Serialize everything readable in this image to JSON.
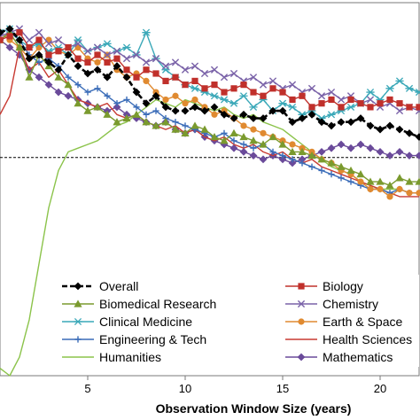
{
  "chart_data": {
    "type": "line",
    "title": "",
    "xlabel": "Observation Window Size (years)",
    "ylabel": "",
    "xlim": [
      0.5,
      22
    ],
    "ylim": [
      0,
      1
    ],
    "x_ticks": [
      5,
      10,
      15,
      20
    ],
    "x_tick_labels": [
      "5",
      "10",
      "15",
      "20"
    ],
    "grid": false,
    "legend_placement": "bottom",
    "reference_line": {
      "y": 0.585,
      "style": "dashed",
      "color": "#000000"
    },
    "x": [
      0.5,
      1,
      1.5,
      2,
      2.5,
      3,
      3.5,
      4,
      4.5,
      5,
      5.5,
      6,
      6.5,
      7,
      7.5,
      8,
      8.5,
      9,
      9.5,
      10,
      10.5,
      11,
      11.5,
      12,
      12.5,
      13,
      13.5,
      14,
      14.5,
      15,
      15.5,
      16,
      16.5,
      17,
      17.5,
      18,
      18.5,
      19,
      19.5,
      20,
      20.5,
      21,
      21.5,
      22
    ],
    "series": [
      {
        "name": "Overall",
        "color": "#000000",
        "marker": "diamond",
        "dashed": true,
        "values": [
          0.92,
          0.93,
          0.9,
          0.85,
          0.86,
          0.84,
          0.82,
          0.86,
          0.83,
          0.81,
          0.82,
          0.8,
          0.83,
          0.8,
          0.76,
          0.73,
          0.75,
          0.72,
          0.71,
          0.71,
          0.72,
          0.71,
          0.72,
          0.7,
          0.69,
          0.7,
          0.69,
          0.69,
          0.71,
          0.71,
          0.68,
          0.69,
          0.7,
          0.68,
          0.67,
          0.68,
          0.68,
          0.69,
          0.67,
          0.66,
          0.67,
          0.66,
          0.65,
          0.64
        ]
      },
      {
        "name": "Biology",
        "color": "#C0302B",
        "marker": "square",
        "dashed": false,
        "values": [
          0.9,
          0.91,
          0.92,
          0.88,
          0.9,
          0.86,
          0.87,
          0.88,
          0.85,
          0.84,
          0.86,
          0.84,
          0.85,
          0.82,
          0.8,
          0.82,
          0.81,
          0.79,
          0.8,
          0.78,
          0.79,
          0.77,
          0.78,
          0.76,
          0.77,
          0.78,
          0.76,
          0.75,
          0.77,
          0.76,
          0.74,
          0.75,
          0.72,
          0.73,
          0.74,
          0.72,
          0.74,
          0.73,
          0.72,
          0.73,
          0.74,
          0.73,
          0.72,
          0.72
        ]
      },
      {
        "name": "Biomedical Research",
        "color": "#7A9A2E",
        "marker": "triangle",
        "dashed": false,
        "values": [
          0.9,
          0.92,
          0.88,
          0.8,
          0.86,
          0.83,
          0.8,
          0.78,
          0.73,
          0.71,
          0.72,
          0.7,
          0.68,
          0.69,
          0.7,
          0.68,
          0.67,
          0.68,
          0.66,
          0.65,
          0.67,
          0.66,
          0.64,
          0.63,
          0.65,
          0.64,
          0.63,
          0.62,
          0.64,
          0.62,
          0.6,
          0.6,
          0.59,
          0.58,
          0.57,
          0.56,
          0.55,
          0.54,
          0.52,
          0.52,
          0.51,
          0.53,
          0.52,
          0.52
        ]
      },
      {
        "name": "Chemistry",
        "color": "#7A62A8",
        "marker": "x",
        "dashed": false,
        "values": [
          0.91,
          0.92,
          0.93,
          0.9,
          0.92,
          0.89,
          0.9,
          0.88,
          0.89,
          0.87,
          0.88,
          0.86,
          0.87,
          0.85,
          0.86,
          0.84,
          0.85,
          0.83,
          0.84,
          0.82,
          0.83,
          0.81,
          0.82,
          0.8,
          0.81,
          0.79,
          0.8,
          0.78,
          0.79,
          0.77,
          0.78,
          0.76,
          0.77,
          0.75,
          0.76,
          0.74,
          0.75,
          0.73,
          0.74,
          0.72,
          0.73,
          0.71,
          0.72,
          0.71
        ]
      },
      {
        "name": "Clinical Medicine",
        "color": "#3AA8B8",
        "marker": "star",
        "dashed": false,
        "values": [
          0.92,
          0.93,
          0.9,
          0.88,
          0.89,
          0.87,
          0.88,
          0.86,
          0.9,
          0.87,
          0.88,
          0.89,
          0.87,
          0.88,
          0.86,
          0.92,
          0.85,
          0.82,
          0.8,
          0.78,
          0.77,
          0.76,
          0.75,
          0.74,
          0.73,
          0.75,
          0.72,
          0.74,
          0.71,
          0.73,
          0.72,
          0.7,
          0.71,
          0.69,
          0.7,
          0.71,
          0.72,
          0.73,
          0.76,
          0.74,
          0.77,
          0.79,
          0.77,
          0.76
        ]
      },
      {
        "name": "Earth & Space",
        "color": "#E08A30",
        "marker": "circle",
        "dashed": false,
        "values": [
          0.92,
          0.9,
          0.88,
          0.85,
          0.88,
          0.9,
          0.87,
          0.86,
          0.88,
          0.85,
          0.84,
          0.86,
          0.82,
          0.8,
          0.81,
          0.79,
          0.76,
          0.74,
          0.75,
          0.73,
          0.74,
          0.72,
          0.7,
          0.71,
          0.69,
          0.67,
          0.66,
          0.65,
          0.64,
          0.63,
          0.62,
          0.61,
          0.6,
          0.58,
          0.57,
          0.55,
          0.54,
          0.52,
          0.5,
          0.5,
          0.48,
          0.5,
          0.49,
          0.49
        ]
      },
      {
        "name": "Engineering & Tech",
        "color": "#3A6CB8",
        "marker": "plus",
        "dashed": false,
        "values": [
          0.9,
          0.92,
          0.9,
          0.86,
          0.84,
          0.85,
          0.83,
          0.8,
          0.78,
          0.76,
          0.77,
          0.75,
          0.73,
          0.74,
          0.72,
          0.7,
          0.71,
          0.69,
          0.68,
          0.67,
          0.66,
          0.65,
          0.64,
          0.65,
          0.63,
          0.62,
          0.61,
          0.62,
          0.6,
          0.59,
          0.58,
          0.57,
          0.56,
          0.55,
          0.54,
          0.53,
          0.52,
          0.51,
          0.5,
          0.5,
          0.49,
          0.5,
          0.49,
          0.49
        ]
      },
      {
        "name": "Health Sciences",
        "color": "#C83A32",
        "marker": "none",
        "dashed": false,
        "values": [
          0.7,
          0.75,
          0.88,
          0.82,
          0.84,
          0.8,
          0.82,
          0.78,
          0.74,
          0.73,
          0.72,
          0.73,
          0.7,
          0.69,
          0.7,
          0.68,
          0.67,
          0.66,
          0.67,
          0.65,
          0.66,
          0.64,
          0.63,
          0.64,
          0.62,
          0.61,
          0.62,
          0.6,
          0.59,
          0.6,
          0.58,
          0.57,
          0.58,
          0.56,
          0.55,
          0.54,
          0.53,
          0.52,
          0.51,
          0.5,
          0.49,
          0.48,
          0.48,
          0.48
        ]
      },
      {
        "name": "Humanities",
        "color": "#8BC34A",
        "marker": "none",
        "dashed": false,
        "values": [
          0.02,
          0.0,
          0.05,
          0.15,
          0.3,
          0.45,
          0.55,
          0.6,
          0.61,
          0.62,
          0.63,
          0.65,
          0.67,
          0.68,
          0.7,
          0.72,
          0.74,
          0.73,
          0.72,
          0.74,
          0.73,
          0.72,
          0.71,
          0.72,
          0.7,
          0.69,
          0.7,
          0.68,
          0.67,
          0.66,
          0.64,
          0.62,
          0.6,
          0.58,
          0.56,
          0.55,
          0.54,
          0.52,
          0.51,
          0.5,
          0.5,
          0.5,
          0.49,
          0.49
        ]
      },
      {
        "name": "Mathematics",
        "color": "#6A4A9A",
        "marker": "diamond",
        "dashed": false,
        "values": [
          0.9,
          0.88,
          0.86,
          0.82,
          0.8,
          0.78,
          0.76,
          0.75,
          0.74,
          0.73,
          0.72,
          0.71,
          0.72,
          0.7,
          0.69,
          0.68,
          0.67,
          0.68,
          0.66,
          0.65,
          0.66,
          0.64,
          0.63,
          0.62,
          0.61,
          0.6,
          0.59,
          0.58,
          0.59,
          0.58,
          0.57,
          0.58,
          0.59,
          0.6,
          0.61,
          0.62,
          0.61,
          0.62,
          0.61,
          0.6,
          0.59,
          0.6,
          0.59,
          0.59
        ]
      }
    ]
  }
}
